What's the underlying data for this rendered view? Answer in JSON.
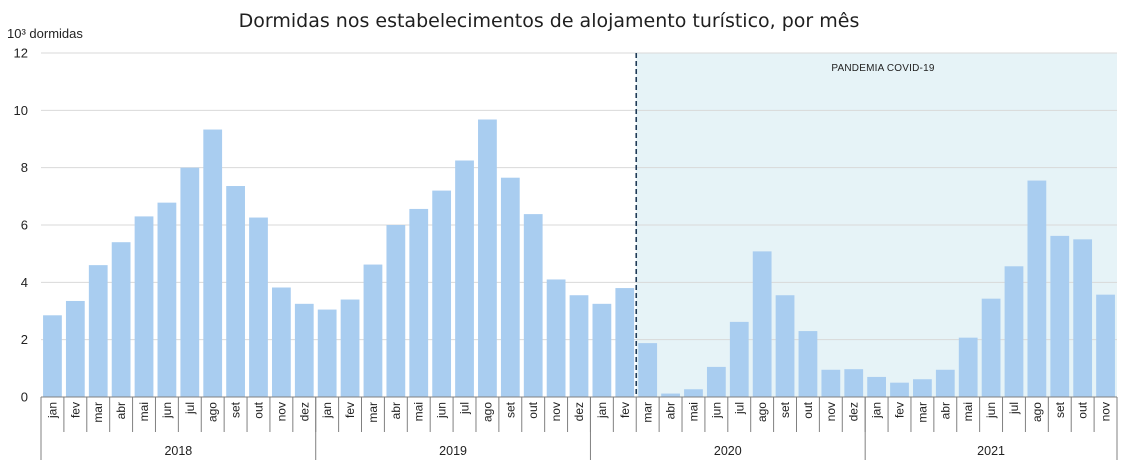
{
  "chart_data": {
    "type": "bar",
    "title": "Dormidas nos estabelecimentos de alojamento turístico, por mês",
    "ylabel": "10³ dormidas",
    "ylim": [
      0,
      12
    ],
    "yticks": [
      0,
      2,
      4,
      6,
      8,
      10,
      12
    ],
    "grid": true,
    "bar_color": "#a9cdf0",
    "shade_color": "#e6f3f7",
    "annotation": "PANDEMIA COVID-19",
    "annotation_start_index": 26,
    "years": [
      {
        "label": "2018",
        "start": 0,
        "count": 12
      },
      {
        "label": "2019",
        "start": 12,
        "count": 12
      },
      {
        "label": "2020",
        "start": 24,
        "count": 12
      },
      {
        "label": "2021",
        "start": 36,
        "count": 11
      }
    ],
    "categories": [
      "jan",
      "fev",
      "mar",
      "abr",
      "mai",
      "jun",
      "jul",
      "ago",
      "set",
      "out",
      "nov",
      "dez",
      "jan",
      "fev",
      "mar",
      "abr",
      "mai",
      "jun",
      "jul",
      "ago",
      "set",
      "out",
      "nov",
      "dez",
      "jan",
      "fev",
      "mar",
      "abr",
      "mai",
      "jun",
      "jul",
      "ago",
      "set",
      "out",
      "nov",
      "dez",
      "jan",
      "fev",
      "mar",
      "abr",
      "mai",
      "jun",
      "jul",
      "ago",
      "set",
      "out",
      "nov"
    ],
    "values": [
      2.85,
      3.35,
      4.6,
      5.4,
      6.3,
      6.78,
      8.0,
      9.33,
      7.36,
      6.26,
      3.82,
      3.25,
      3.05,
      3.4,
      4.62,
      6.0,
      6.56,
      7.2,
      8.25,
      9.68,
      7.65,
      6.38,
      4.1,
      3.55,
      3.25,
      3.8,
      1.88,
      0.12,
      0.27,
      1.05,
      2.62,
      5.08,
      3.55,
      2.3,
      0.95,
      0.97,
      0.7,
      0.5,
      0.62,
      0.95,
      2.07,
      3.43,
      4.56,
      7.55,
      5.62,
      5.5,
      3.57
    ]
  }
}
